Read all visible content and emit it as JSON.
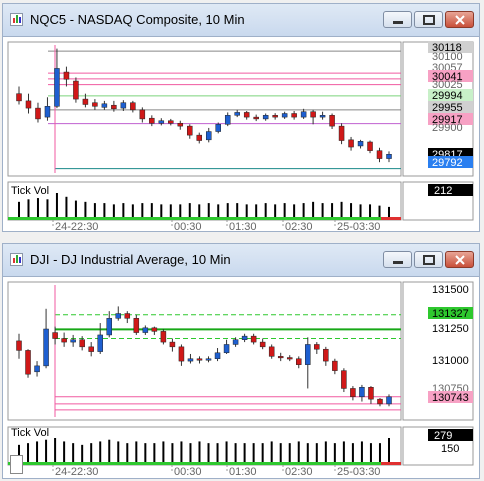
{
  "windows": [
    {
      "title": "NQC5 - NASDAQ Composite, 10 Min",
      "price_labels": [
        {
          "text": "30118",
          "bg": "#d0d0d0",
          "fg": "#000000"
        },
        {
          "text": "30100",
          "bg": "#ffffff",
          "fg": "#666666"
        },
        {
          "text": "30057",
          "bg": "#ffffff",
          "fg": "#666666"
        },
        {
          "text": "30041",
          "bg": "#f7a1c4",
          "fg": "#000000"
        },
        {
          "text": "30025",
          "bg": "#ffffff",
          "fg": "#666666"
        },
        {
          "text": "29994",
          "bg": "#c8f0c8",
          "fg": "#000000"
        },
        {
          "text": "29955",
          "bg": "#d0d0d0",
          "fg": "#000000"
        },
        {
          "text": "29917",
          "bg": "#f7a1c4",
          "fg": "#000000"
        },
        {
          "text": "29900",
          "bg": "#ffffff",
          "fg": "#666666"
        },
        {
          "text": "29817",
          "bg": "#000000",
          "fg": "#ffffff"
        },
        {
          "text": "29792",
          "bg": "#2a7ff0",
          "fg": "#ffffff"
        }
      ],
      "volume_label": "Tick Vol",
      "volume_value": "212",
      "time_labels": [
        "24-22:30",
        "00:30",
        "01:30",
        "02:30",
        "25-03:30"
      ]
    },
    {
      "title": "DJI - DJ Industrial Average, 10 Min",
      "price_labels": [
        {
          "text": "131500",
          "bg": "#ffffff",
          "fg": "#000000"
        },
        {
          "text": "131327",
          "bg": "#2ec82e",
          "fg": "#000000"
        },
        {
          "text": "131250",
          "bg": "#ffffff",
          "fg": "#000000"
        },
        {
          "text": "131000",
          "bg": "#ffffff",
          "fg": "#000000"
        },
        {
          "text": "130750",
          "bg": "#ffffff",
          "fg": "#666666"
        },
        {
          "text": "130743",
          "bg": "#f7a1c4",
          "fg": "#000000"
        }
      ],
      "volume_label": "Tick Vol",
      "volume_value": "279",
      "volume_scale": "150",
      "time_labels": [
        "24-22:30",
        "00:30",
        "01:30",
        "02:30",
        "25-03:30"
      ]
    }
  ],
  "chart_data": [
    {
      "type": "candlestick",
      "symbol": "NQC5",
      "ylim": [
        29780,
        30135
      ],
      "candles": [
        [
          30000,
          29980,
          30020,
          29970
        ],
        [
          29980,
          29960,
          30000,
          29945
        ],
        [
          29960,
          29930,
          29975,
          29920
        ],
        [
          29935,
          29965,
          29990,
          29925
        ],
        [
          29965,
          30070,
          30125,
          29960
        ],
        [
          30060,
          30040,
          30075,
          30020
        ],
        [
          30035,
          29985,
          30045,
          29975
        ],
        [
          29985,
          29970,
          30000,
          29962
        ],
        [
          29975,
          29965,
          29985,
          29955
        ],
        [
          29962,
          29972,
          29980,
          29955
        ],
        [
          29968,
          29958,
          29980,
          29950
        ],
        [
          29960,
          29975,
          29982,
          29952
        ],
        [
          29975,
          29955,
          29980,
          29948
        ],
        [
          29955,
          29930,
          29962,
          29920
        ],
        [
          29932,
          29918,
          29940,
          29910
        ],
        [
          29918,
          29925,
          29932,
          29912
        ],
        [
          29925,
          29918,
          29930,
          29912
        ],
        [
          29918,
          29910,
          29925,
          29900
        ],
        [
          29910,
          29885,
          29915,
          29875
        ],
        [
          29885,
          29870,
          29892,
          29862
        ],
        [
          29872,
          29895,
          29905,
          29865
        ],
        [
          29895,
          29915,
          29920,
          29890
        ],
        [
          29915,
          29940,
          29948,
          29910
        ],
        [
          29940,
          29948,
          29955,
          29935
        ],
        [
          29948,
          29935,
          29952,
          29928
        ],
        [
          29935,
          29930,
          29942,
          29924
        ],
        [
          29930,
          29940,
          29945,
          29925
        ],
        [
          29940,
          29935,
          29946,
          29928
        ],
        [
          29935,
          29945,
          29950,
          29930
        ],
        [
          29945,
          29935,
          29952,
          29928
        ],
        [
          29935,
          29950,
          29958,
          29930
        ],
        [
          29950,
          29935,
          29955,
          29915
        ],
        [
          29935,
          29940,
          29950,
          29928
        ],
        [
          29940,
          29910,
          29945,
          29902
        ],
        [
          29910,
          29870,
          29918,
          29860
        ],
        [
          29872,
          29852,
          29880,
          29842
        ],
        [
          29855,
          29868,
          29872,
          29848
        ],
        [
          29866,
          29842,
          29870,
          29835
        ],
        [
          29842,
          29820,
          29850,
          29810
        ],
        [
          29820,
          29832,
          29840,
          29810
        ]
      ],
      "volume": [
        60,
        70,
        75,
        70,
        95,
        80,
        65,
        60,
        55,
        55,
        50,
        55,
        50,
        55,
        55,
        50,
        50,
        50,
        55,
        50,
        55,
        50,
        55,
        55,
        50,
        50,
        55,
        50,
        55,
        50,
        55,
        60,
        55,
        55,
        60,
        55,
        50,
        50,
        45,
        40
      ]
    },
    {
      "type": "candlestick",
      "symbol": "DJI",
      "ylim": [
        130590,
        131700
      ],
      "candles": [
        [
          131230,
          131150,
          131290,
          131080
        ],
        [
          131150,
          130950,
          131160,
          130920
        ],
        [
          130970,
          131020,
          131060,
          130930
        ],
        [
          131020,
          131330,
          131500,
          131000
        ],
        [
          131300,
          131250,
          131350,
          131200
        ],
        [
          131250,
          131220,
          131300,
          131180
        ],
        [
          131220,
          131240,
          131280,
          131180
        ],
        [
          131240,
          131180,
          131270,
          131150
        ],
        [
          131180,
          131140,
          131220,
          131100
        ],
        [
          131140,
          131280,
          131380,
          131120
        ],
        [
          131280,
          131420,
          131480,
          131260
        ],
        [
          131420,
          131460,
          131520,
          131400
        ],
        [
          131460,
          131420,
          131480,
          131380
        ],
        [
          131420,
          131300,
          131450,
          131280
        ],
        [
          131300,
          131340,
          131360,
          131280
        ],
        [
          131340,
          131310,
          131350,
          131280
        ],
        [
          131310,
          131220,
          131330,
          131200
        ],
        [
          131220,
          131180,
          131250,
          131140
        ],
        [
          131180,
          131060,
          131200,
          131020
        ],
        [
          131060,
          131080,
          131120,
          131040
        ],
        [
          131080,
          131070,
          131100,
          131040
        ],
        [
          131070,
          131080,
          131100,
          131050
        ],
        [
          131080,
          131130,
          131170,
          131060
        ],
        [
          131130,
          131200,
          131240,
          131120
        ],
        [
          131200,
          131240,
          131260,
          131180
        ],
        [
          131240,
          131270,
          131290,
          131220
        ],
        [
          131270,
          131220,
          131290,
          131200
        ],
        [
          131220,
          131180,
          131250,
          131160
        ],
        [
          131180,
          131100,
          131200,
          131080
        ],
        [
          131100,
          131090,
          131130,
          131060
        ],
        [
          131090,
          131080,
          131110,
          131060
        ],
        [
          131080,
          131030,
          131100,
          131000
        ],
        [
          131030,
          131200,
          131260,
          130830
        ],
        [
          131200,
          131160,
          131220,
          131120
        ],
        [
          131160,
          131060,
          131180,
          131020
        ],
        [
          131060,
          130980,
          131080,
          130950
        ],
        [
          130980,
          130830,
          131000,
          130800
        ],
        [
          130830,
          130760,
          130850,
          130730
        ],
        [
          130760,
          130840,
          130860,
          130720
        ],
        [
          130840,
          130740,
          130850,
          130700
        ],
        [
          130740,
          130700,
          130750,
          130680
        ],
        [
          130700,
          130760,
          130780,
          130680
        ]
      ],
      "volume": [
        50,
        55,
        60,
        65,
        70,
        60,
        55,
        50,
        55,
        60,
        65,
        60,
        55,
        60,
        55,
        55,
        60,
        55,
        60,
        55,
        60,
        55,
        55,
        60,
        55,
        55,
        55,
        55,
        60,
        55,
        55,
        60,
        55,
        55,
        60,
        55,
        60,
        55,
        60,
        55,
        55,
        70
      ]
    }
  ]
}
